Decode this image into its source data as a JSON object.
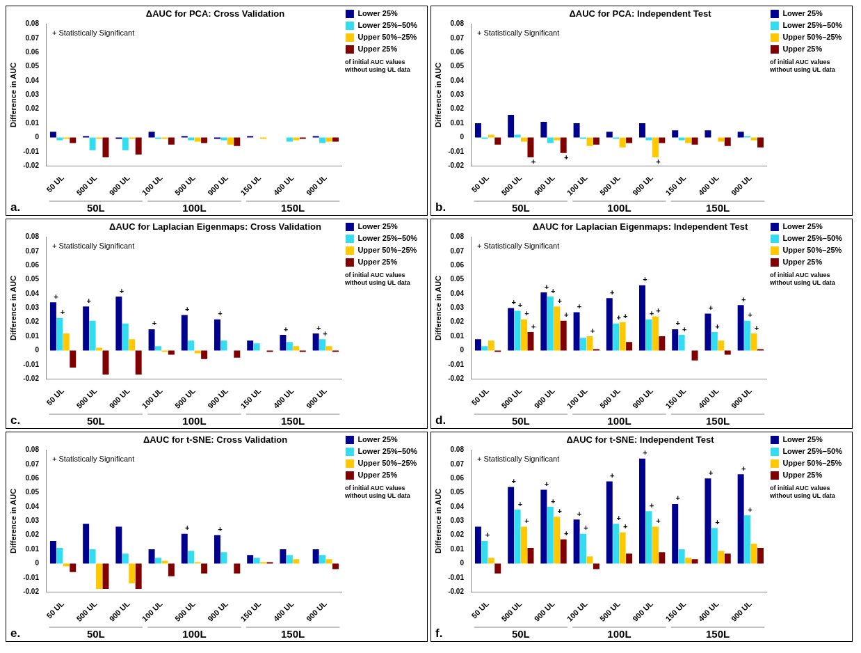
{
  "chart_data": [
    {
      "type": "bar",
      "title": "ΔAUC for PCA: Cross Validation",
      "ylabel": "Difference in AUC",
      "legend": "top right",
      "legend_title": "of initial AUC values without using UL data",
      "grid": false,
      "ylim": [
        -0.02,
        0.08
      ],
      "yticks": [
        -0.02,
        -0.01,
        0,
        0.01,
        0.02,
        0.03,
        0.04,
        0.05,
        0.06,
        0.07,
        0.08
      ],
      "annotations": [
        "+ Statistically Significant",
        "50L",
        "100L",
        "150L",
        "a."
      ],
      "categories": [
        "50 UL",
        "500 UL",
        "900 UL",
        "100 UL",
        "500 UL",
        "900 UL",
        "150 UL",
        "400 UL",
        "900 UL"
      ],
      "series": [
        {
          "name": "Lower 25%",
          "color": "#00008f",
          "values": [
            0.004,
            0.001,
            -0.001,
            0.004,
            0.001,
            -0.001,
            0.001,
            0,
            0.001
          ]
        },
        {
          "name": "Lower 25%–50%",
          "color": "#33ddf0",
          "values": [
            -0.002,
            -0.009,
            -0.009,
            -0.001,
            -0.002,
            -0.002,
            0,
            -0.003,
            -0.004
          ]
        },
        {
          "name": "Upper 50%–25%",
          "color": "#ffc800",
          "values": [
            -0.001,
            -0.001,
            -0.001,
            -0.001,
            -0.003,
            -0.005,
            -0.001,
            -0.002,
            -0.003
          ]
        },
        {
          "name": "Upper 25%",
          "color": "#800000",
          "values": [
            -0.004,
            -0.014,
            -0.012,
            -0.005,
            -0.004,
            -0.006,
            0,
            -0.001,
            -0.003
          ]
        }
      ]
    },
    {
      "type": "bar",
      "title": "ΔAUC for PCA: Independent Test",
      "ylabel": "Difference in AUC",
      "legend": "top right",
      "legend_title": "of initial AUC values without using UL data",
      "grid": false,
      "ylim": [
        -0.02,
        0.08
      ],
      "yticks": [
        -0.02,
        -0.01,
        0,
        0.01,
        0.02,
        0.03,
        0.04,
        0.05,
        0.06,
        0.07,
        0.08
      ],
      "annotations": [
        "+ Statistically Significant",
        "50L",
        "100L",
        "150L",
        "b."
      ],
      "categories": [
        "50 UL",
        "500 UL",
        "900 UL",
        "100 UL",
        "500 UL",
        "900 UL",
        "150 UL",
        "400 UL",
        "900 UL"
      ],
      "series": [
        {
          "name": "Lower 25%",
          "color": "#00008f",
          "values": [
            0.01,
            0.016,
            0.011,
            0.01,
            0.004,
            0.01,
            0.005,
            0.005,
            0.004
          ]
        },
        {
          "name": "Lower 25%–50%",
          "color": "#33ddf0",
          "values": [
            -0.001,
            0.002,
            -0.004,
            -0.001,
            -0.001,
            -0.002,
            -0.002,
            0,
            0.001
          ]
        },
        {
          "name": "Upper 50%–25%",
          "color": "#ffc800",
          "values": [
            0.002,
            -0.003,
            -0.002,
            -0.006,
            -0.007,
            -0.014,
            -0.004,
            -0.003,
            -0.002
          ],
          "value_labels": [
            null,
            null,
            null,
            null,
            null,
            "+",
            null,
            null,
            null
          ]
        },
        {
          "name": "Upper 25%",
          "color": "#800000",
          "values": [
            -0.005,
            -0.014,
            -0.011,
            -0.005,
            -0.004,
            -0.004,
            -0.005,
            -0.006,
            -0.007
          ],
          "value_labels": [
            null,
            "+",
            "+",
            null,
            null,
            null,
            null,
            null,
            null
          ]
        }
      ]
    },
    {
      "type": "bar",
      "title": "ΔAUC for Laplacian Eigenmaps: Cross Validation",
      "ylabel": "Difference in AUC",
      "legend": "top right",
      "legend_title": "of initial AUC values without using UL data",
      "grid": false,
      "ylim": [
        -0.02,
        0.08
      ],
      "yticks": [
        -0.02,
        -0.01,
        0,
        0.01,
        0.02,
        0.03,
        0.04,
        0.05,
        0.06,
        0.07,
        0.08
      ],
      "annotations": [
        "+ Statistically Significant",
        "50L",
        "100L",
        "150L",
        "c."
      ],
      "categories": [
        "50 UL",
        "500 UL",
        "900 UL",
        "100 UL",
        "500 UL",
        "900 UL",
        "150 UL",
        "400 UL",
        "900 UL"
      ],
      "series": [
        {
          "name": "Lower 25%",
          "color": "#00008f",
          "values": [
            0.034,
            0.031,
            0.038,
            0.015,
            0.025,
            0.022,
            0.007,
            0.011,
            0.012
          ],
          "value_labels": [
            "+",
            "+",
            "+",
            "+",
            "+",
            "+",
            null,
            "+",
            "+"
          ]
        },
        {
          "name": "Lower 25%–50%",
          "color": "#33ddf0",
          "values": [
            0.023,
            0.021,
            0.019,
            0.003,
            0.007,
            0.007,
            0.005,
            0.006,
            0.008
          ],
          "value_labels": [
            "+",
            null,
            null,
            null,
            null,
            null,
            null,
            null,
            "+"
          ]
        },
        {
          "name": "Upper 50%–25%",
          "color": "#ffc800",
          "values": [
            0.012,
            0.002,
            0.008,
            -0.001,
            -0.002,
            0,
            0,
            0.003,
            0.003
          ]
        },
        {
          "name": "Upper 25%",
          "color": "#800000",
          "values": [
            -0.012,
            -0.017,
            -0.017,
            -0.003,
            -0.006,
            -0.005,
            -0.001,
            -0.001,
            -0.001
          ]
        }
      ]
    },
    {
      "type": "bar",
      "title": "ΔAUC for Laplacian Eigenmaps: Independent Test",
      "ylabel": "Difference in AUC",
      "legend": "top right",
      "legend_title": "of initial AUC values without using UL data",
      "grid": false,
      "ylim": [
        -0.02,
        0.08
      ],
      "yticks": [
        -0.02,
        -0.01,
        0,
        0.01,
        0.02,
        0.03,
        0.04,
        0.05,
        0.06,
        0.07,
        0.08
      ],
      "annotations": [
        "+ Statistically Significant",
        "50L",
        "100L",
        "150L",
        "d."
      ],
      "categories": [
        "50 UL",
        "500 UL",
        "900 UL",
        "100 UL",
        "500 UL",
        "900 UL",
        "150 UL",
        "400 UL",
        "900 UL"
      ],
      "series": [
        {
          "name": "Lower 25%",
          "color": "#00008f",
          "values": [
            0.008,
            0.03,
            0.041,
            0.027,
            0.037,
            0.046,
            0.015,
            0.026,
            0.032
          ],
          "value_labels": [
            null,
            "+",
            "+",
            "+",
            "+",
            "+",
            "+",
            "+",
            "+"
          ]
        },
        {
          "name": "Lower 25%–50%",
          "color": "#33ddf0",
          "values": [
            0.003,
            0.028,
            0.038,
            0.009,
            0.019,
            0.022,
            0.011,
            0.013,
            0.021
          ],
          "value_labels": [
            null,
            "+",
            "+",
            null,
            "+",
            "+",
            "+",
            "+",
            "+"
          ]
        },
        {
          "name": "Upper 50%–25%",
          "color": "#ffc800",
          "values": [
            0.007,
            0.022,
            0.031,
            0.01,
            0.02,
            0.024,
            0,
            0.007,
            0.012
          ],
          "value_labels": [
            null,
            "+",
            "+",
            "+",
            "+",
            "+",
            null,
            null,
            "+"
          ]
        },
        {
          "name": "Upper 25%",
          "color": "#800000",
          "values": [
            -0.001,
            0.013,
            0.021,
            0.001,
            0.006,
            0.01,
            -0.007,
            -0.003,
            0.001
          ],
          "value_labels": [
            null,
            "+",
            "+",
            null,
            null,
            null,
            null,
            null,
            null
          ]
        }
      ]
    },
    {
      "type": "bar",
      "title": "ΔAUC for t-SNE: Cross Validation",
      "ylabel": "Difference in AUC",
      "legend": "top right",
      "legend_title": "of initial AUC values without using UL data",
      "grid": false,
      "ylim": [
        -0.02,
        0.08
      ],
      "yticks": [
        -0.02,
        -0.01,
        0,
        0.01,
        0.02,
        0.03,
        0.04,
        0.05,
        0.06,
        0.07,
        0.08
      ],
      "annotations": [
        "+ Statistically Significant",
        "50L",
        "100L",
        "150L",
        "e."
      ],
      "categories": [
        "50 UL",
        "500 UL",
        "900 UL",
        "100 UL",
        "500 UL",
        "900 UL",
        "150 UL",
        "400 UL",
        "900 UL"
      ],
      "series": [
        {
          "name": "Lower 25%",
          "color": "#00008f",
          "values": [
            0.016,
            0.028,
            0.026,
            0.01,
            0.021,
            0.02,
            0.006,
            0.01,
            0.01
          ],
          "value_labels": [
            null,
            null,
            null,
            null,
            "+",
            "+",
            null,
            null,
            null
          ]
        },
        {
          "name": "Lower 25%–50%",
          "color": "#33ddf0",
          "values": [
            0.011,
            0.01,
            0.007,
            0.004,
            0.009,
            0.008,
            0.004,
            0.006,
            0.006
          ]
        },
        {
          "name": "Upper 50%–25%",
          "color": "#ffc800",
          "values": [
            -0.002,
            -0.018,
            -0.014,
            0.002,
            0.001,
            0,
            0.001,
            0.003,
            0.003
          ]
        },
        {
          "name": "Upper 25%",
          "color": "#800000",
          "values": [
            -0.006,
            -0.018,
            -0.018,
            -0.009,
            -0.007,
            -0.007,
            0.001,
            0,
            -0.004
          ]
        }
      ]
    },
    {
      "type": "bar",
      "title": "ΔAUC for t-SNE: Independent Test",
      "ylabel": "Difference in AUC",
      "legend": "top right",
      "legend_title": "of initial AUC values without using UL data",
      "grid": false,
      "ylim": [
        -0.02,
        0.08
      ],
      "yticks": [
        -0.02,
        -0.01,
        0,
        0.01,
        0.02,
        0.03,
        0.04,
        0.05,
        0.06,
        0.07,
        0.08
      ],
      "annotations": [
        "+ Statistically Significant",
        "50L",
        "100L",
        "150L",
        "f."
      ],
      "categories": [
        "50 UL",
        "500 UL",
        "900 UL",
        "100 UL",
        "500 UL",
        "900 UL",
        "150 UL",
        "400 UL",
        "900 UL"
      ],
      "series": [
        {
          "name": "Lower 25%",
          "color": "#00008f",
          "values": [
            0.026,
            0.054,
            0.052,
            0.031,
            0.058,
            0.074,
            0.042,
            0.06,
            0.063
          ],
          "value_labels": [
            null,
            "+",
            "+",
            "+",
            "+",
            "+",
            "+",
            "+",
            "+"
          ]
        },
        {
          "name": "Lower 25%–50%",
          "color": "#33ddf0",
          "values": [
            0.016,
            0.038,
            0.04,
            0.021,
            0.028,
            0.037,
            0.01,
            0.025,
            0.034
          ],
          "value_labels": [
            "+",
            "+",
            "+",
            "+",
            "+",
            "+",
            null,
            "+",
            "+"
          ]
        },
        {
          "name": "Upper 50%–25%",
          "color": "#ffc800",
          "values": [
            0.004,
            0.026,
            0.033,
            0.005,
            0.022,
            0.026,
            0.004,
            0.009,
            0.014
          ],
          "value_labels": [
            null,
            "+",
            "+",
            null,
            "+",
            "+",
            null,
            null,
            null
          ]
        },
        {
          "name": "Upper 25%",
          "color": "#800000",
          "values": [
            -0.007,
            0.011,
            0.017,
            -0.004,
            0.007,
            0.008,
            0.003,
            0.007,
            0.011
          ],
          "value_labels": [
            null,
            null,
            "+",
            null,
            null,
            null,
            null,
            null,
            null
          ]
        }
      ]
    }
  ]
}
